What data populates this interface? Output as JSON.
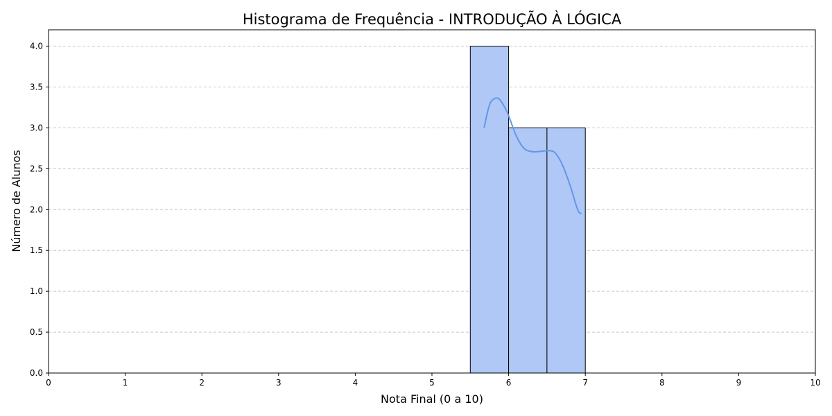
{
  "chart_data": {
    "type": "bar",
    "title": "Histograma de Frequência - INTRODUÇÃO À LÓGICA",
    "xlabel": "Nota Final (0 a 10)",
    "ylabel": "Número de Alunos",
    "xlim": [
      0,
      10
    ],
    "ylim": [
      0,
      4.2
    ],
    "x_ticks": [
      0,
      1,
      2,
      3,
      4,
      5,
      6,
      7,
      8,
      9,
      10
    ],
    "x_tick_labels": [
      "0",
      "1",
      "2",
      "3",
      "4",
      "5",
      "6",
      "7",
      "8",
      "9",
      "10"
    ],
    "y_ticks": [
      0,
      0.5,
      1,
      1.5,
      2,
      2.5,
      3,
      3.5,
      4
    ],
    "y_tick_labels": [
      "0.0",
      "0.5",
      "1.0",
      "1.5",
      "2.0",
      "2.5",
      "3.0",
      "3.5",
      "4.0"
    ],
    "grid": "y-dashed",
    "bins": [
      {
        "start": 5.5,
        "end": 6.0,
        "count": 4
      },
      {
        "start": 6.0,
        "end": 6.5,
        "count": 3
      },
      {
        "start": 6.5,
        "end": 7.0,
        "count": 3
      }
    ],
    "kde": {
      "x": [
        5.68,
        5.75,
        5.82,
        5.88,
        5.95,
        6.0,
        6.1,
        6.2,
        6.3,
        6.4,
        6.5,
        6.6,
        6.7,
        6.8,
        6.9,
        6.95
      ],
      "y": [
        3.0,
        3.28,
        3.36,
        3.35,
        3.25,
        3.15,
        2.9,
        2.75,
        2.71,
        2.71,
        2.72,
        2.7,
        2.55,
        2.3,
        2.0,
        1.95
      ]
    },
    "colors": {
      "bar_fill": "#b0c8f5",
      "bar_edge": "#000000",
      "kde_line": "#6495ed",
      "grid": "#c8c8c8"
    }
  }
}
